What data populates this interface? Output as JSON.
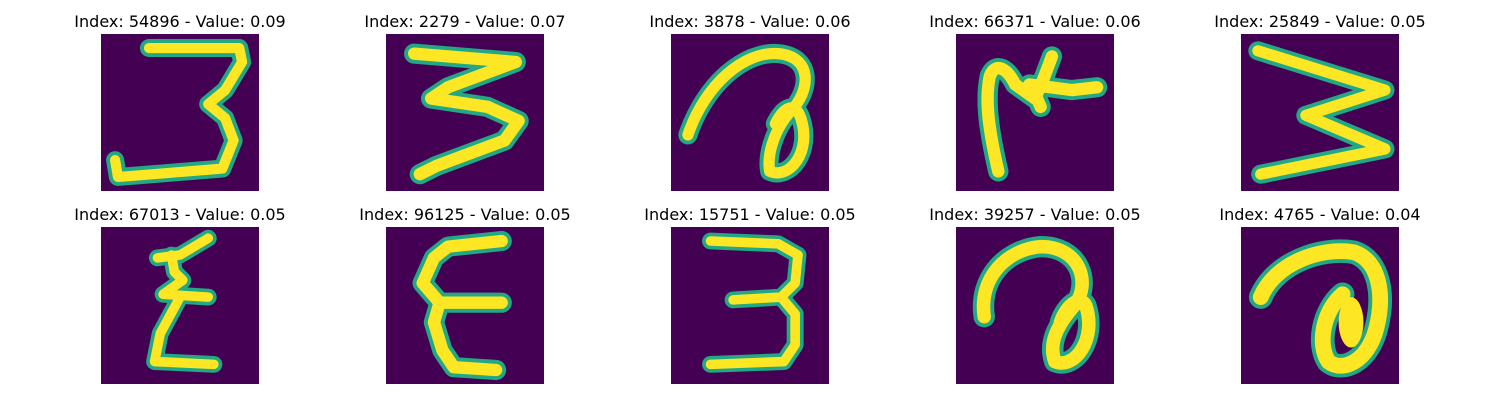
{
  "colors": {
    "background": "#440154",
    "stroke_core": "#fde725",
    "stroke_edge": "#22a884"
  },
  "panels": [
    {
      "title": "Index: 54896 - Value: 0.09",
      "glyph": "three-flat-bottom-icon"
    },
    {
      "title": "Index: 2279 - Value: 0.07",
      "glyph": "three-zigzag-icon"
    },
    {
      "title": "Index: 3878 - Value: 0.06",
      "glyph": "loop-hook-icon"
    },
    {
      "title": "Index: 66371 - Value: 0.06",
      "glyph": "hook-with-cross-icon"
    },
    {
      "title": "Index: 25849 - Value: 0.05",
      "glyph": "zigzag-w-icon"
    },
    {
      "title": "Index: 67013 - Value: 0.05",
      "glyph": "zigzag-z-icon"
    },
    {
      "title": "Index: 96125 - Value: 0.05",
      "glyph": "epsilon-icon"
    },
    {
      "title": "Index: 15751 - Value: 0.05",
      "glyph": "three-icon"
    },
    {
      "title": "Index: 39257 - Value: 0.05",
      "glyph": "loop-a-icon"
    },
    {
      "title": "Index: 4765 - Value: 0.04",
      "glyph": "loop-blob-icon"
    }
  ]
}
